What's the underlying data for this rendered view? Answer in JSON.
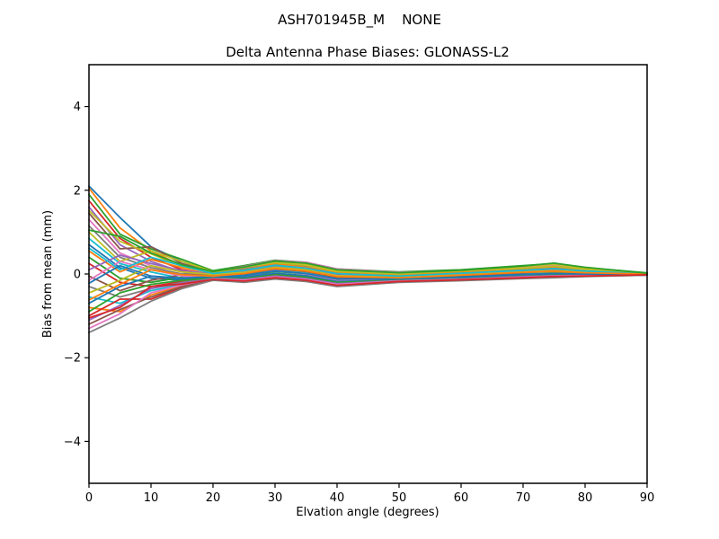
{
  "chart_data": {
    "type": "line",
    "suptitle": "ASH701945B_M    NONE",
    "title": "Delta Antenna Phase Biases: GLONASS-L2",
    "xlabel": "Elvation angle (degrees)",
    "ylabel": "Bias from mean (mm)",
    "xlim": [
      0,
      90
    ],
    "ylim": [
      -5,
      5
    ],
    "xticks": [
      0,
      10,
      20,
      30,
      40,
      50,
      60,
      70,
      80,
      90
    ],
    "yticks": [
      -4,
      -2,
      0,
      2,
      4
    ],
    "grid": false,
    "legend": "none",
    "x": [
      0,
      5,
      10,
      15,
      20,
      25,
      30,
      35,
      40,
      50,
      60,
      70,
      75,
      80,
      90
    ],
    "series": [
      {
        "color": "#1f77b4",
        "values": [
          2.1,
          1.35,
          0.65,
          0.3,
          0.05,
          0.1,
          0.22,
          0.18,
          0.05,
          0.02,
          0.08,
          0.15,
          0.2,
          0.12,
          0.01
        ]
      },
      {
        "color": "#ff7f0e",
        "values": [
          2.05,
          1.1,
          0.55,
          0.2,
          0.02,
          0.15,
          0.3,
          0.25,
          0.1,
          -0.05,
          0.02,
          0.1,
          0.15,
          0.08,
          0.0
        ]
      },
      {
        "color": "#2ca02c",
        "values": [
          1.9,
          0.95,
          0.6,
          0.35,
          0.08,
          0.2,
          0.33,
          0.28,
          0.12,
          0.05,
          0.1,
          0.2,
          0.25,
          0.15,
          0.03
        ]
      },
      {
        "color": "#d62728",
        "values": [
          1.75,
          0.85,
          0.4,
          0.1,
          -0.02,
          0.05,
          0.18,
          0.12,
          0.0,
          -0.08,
          -0.02,
          0.05,
          0.1,
          0.05,
          0.0
        ]
      },
      {
        "color": "#9467bd",
        "values": [
          1.6,
          0.7,
          0.3,
          0.05,
          0.0,
          0.12,
          0.25,
          0.2,
          0.08,
          0.0,
          0.05,
          0.12,
          0.18,
          0.1,
          0.01
        ]
      },
      {
        "color": "#8c564b",
        "values": [
          1.45,
          0.6,
          0.65,
          0.25,
          0.05,
          0.18,
          0.28,
          0.22,
          0.05,
          -0.02,
          0.06,
          0.16,
          0.22,
          0.12,
          0.01
        ]
      },
      {
        "color": "#e377c2",
        "values": [
          1.3,
          0.5,
          0.2,
          -0.05,
          0.05,
          0.18,
          0.32,
          0.28,
          0.12,
          0.04,
          0.08,
          0.16,
          0.22,
          0.13,
          0.01
        ]
      },
      {
        "color": "#7f7f7f",
        "values": [
          1.15,
          0.4,
          0.15,
          0.0,
          0.03,
          0.14,
          0.26,
          0.18,
          0.02,
          -0.04,
          0.03,
          0.1,
          0.14,
          0.07,
          0.0
        ]
      },
      {
        "color": "#bcbd22",
        "values": [
          1.0,
          0.3,
          0.55,
          0.3,
          0.06,
          0.16,
          0.3,
          0.24,
          0.08,
          0.02,
          0.08,
          0.18,
          0.24,
          0.14,
          0.02
        ]
      },
      {
        "color": "#17becf",
        "values": [
          0.85,
          0.25,
          0.05,
          -0.1,
          -0.08,
          -0.02,
          0.1,
          0.05,
          -0.1,
          -0.12,
          -0.06,
          0.0,
          0.04,
          0.02,
          -0.01
        ]
      },
      {
        "color": "#1f77b4",
        "values": [
          0.7,
          0.15,
          -0.1,
          -0.15,
          -0.04,
          0.08,
          0.2,
          0.15,
          0.0,
          -0.06,
          0.0,
          0.08,
          0.12,
          0.06,
          0.0
        ]
      },
      {
        "color": "#ff7f0e",
        "values": [
          0.55,
          0.05,
          0.35,
          0.15,
          0.02,
          0.1,
          0.24,
          0.16,
          0.03,
          -0.03,
          0.04,
          0.12,
          0.16,
          0.09,
          0.01
        ]
      },
      {
        "color": "#2ca02c",
        "values": [
          0.4,
          -0.1,
          -0.2,
          -0.08,
          -0.06,
          -0.05,
          0.06,
          0.0,
          -0.14,
          -0.13,
          -0.08,
          -0.02,
          0.02,
          0.0,
          -0.01
        ]
      },
      {
        "color": "#d62728",
        "values": [
          0.25,
          -0.2,
          -0.3,
          -0.18,
          -0.1,
          -0.1,
          0.0,
          -0.06,
          -0.18,
          -0.14,
          -0.1,
          -0.04,
          -0.02,
          -0.02,
          -0.02
        ]
      },
      {
        "color": "#9467bd",
        "values": [
          0.1,
          0.45,
          0.25,
          0.08,
          0.0,
          0.06,
          0.18,
          0.12,
          -0.02,
          -0.07,
          -0.01,
          0.06,
          0.1,
          0.05,
          0.0
        ]
      },
      {
        "color": "#8c564b",
        "values": [
          -0.05,
          -0.4,
          -0.15,
          -0.02,
          -0.03,
          0.0,
          0.12,
          0.06,
          -0.08,
          -0.1,
          -0.04,
          0.03,
          0.07,
          0.03,
          0.0
        ]
      },
      {
        "color": "#e377c2",
        "values": [
          -0.15,
          0.3,
          0.1,
          -0.05,
          -0.07,
          -0.06,
          0.08,
          0.0,
          -0.16,
          -0.13,
          -0.09,
          -0.03,
          0.0,
          -0.01,
          -0.01
        ]
      },
      {
        "color": "#7f7f7f",
        "values": [
          -0.3,
          -0.55,
          -0.35,
          -0.2,
          -0.09,
          -0.12,
          -0.04,
          -0.1,
          -0.22,
          -0.15,
          -0.11,
          -0.06,
          -0.04,
          -0.03,
          -0.02
        ]
      },
      {
        "color": "#bcbd22",
        "values": [
          -0.45,
          -0.15,
          0.2,
          0.05,
          -0.01,
          0.04,
          0.16,
          0.1,
          -0.04,
          -0.08,
          -0.02,
          0.05,
          0.08,
          0.04,
          0.0
        ]
      },
      {
        "color": "#17becf",
        "values": [
          -0.55,
          -0.7,
          -0.4,
          -0.25,
          -0.11,
          -0.14,
          -0.06,
          -0.12,
          -0.24,
          -0.16,
          -0.12,
          -0.07,
          -0.05,
          -0.04,
          -0.02
        ]
      },
      {
        "color": "#1f77b4",
        "values": [
          -0.7,
          -0.3,
          -0.05,
          -0.12,
          -0.08,
          -0.08,
          0.02,
          -0.04,
          -0.18,
          -0.14,
          -0.1,
          -0.04,
          -0.01,
          -0.02,
          -0.01
        ]
      },
      {
        "color": "#ff7f0e",
        "values": [
          -0.8,
          -0.9,
          -0.5,
          -0.28,
          -0.12,
          -0.16,
          -0.08,
          -0.14,
          -0.26,
          -0.17,
          -0.13,
          -0.08,
          -0.06,
          -0.04,
          -0.02
        ]
      },
      {
        "color": "#2ca02c",
        "values": [
          -0.9,
          -0.45,
          -0.25,
          -0.15,
          -0.1,
          -0.11,
          -0.02,
          -0.08,
          -0.2,
          -0.15,
          -0.11,
          -0.05,
          -0.03,
          -0.03,
          -0.02
        ]
      },
      {
        "color": "#d62728",
        "values": [
          -1.0,
          -0.6,
          -0.6,
          -0.32,
          -0.13,
          -0.18,
          -0.1,
          -0.16,
          -0.28,
          -0.18,
          -0.14,
          -0.09,
          -0.07,
          -0.05,
          -0.02
        ]
      },
      {
        "color": "#9467bd",
        "values": [
          -1.1,
          -0.75,
          -0.35,
          -0.22,
          -0.11,
          -0.13,
          -0.05,
          -0.11,
          -0.23,
          -0.16,
          -0.12,
          -0.06,
          -0.04,
          -0.03,
          -0.02
        ]
      },
      {
        "color": "#8c564b",
        "values": [
          -1.2,
          -0.85,
          -0.55,
          -0.3,
          -0.14,
          -0.19,
          -0.11,
          -0.17,
          -0.29,
          -0.19,
          -0.15,
          -0.1,
          -0.08,
          -0.05,
          -0.03
        ]
      },
      {
        "color": "#e377c2",
        "values": [
          -1.3,
          -0.95,
          -0.45,
          -0.26,
          -0.12,
          -0.15,
          -0.07,
          -0.13,
          -0.25,
          -0.17,
          -0.13,
          -0.08,
          -0.05,
          -0.04,
          -0.02
        ]
      },
      {
        "color": "#7f7f7f",
        "values": [
          -1.4,
          -1.05,
          -0.65,
          -0.35,
          -0.15,
          -0.2,
          -0.12,
          -0.18,
          -0.3,
          -0.2,
          -0.16,
          -0.11,
          -0.09,
          -0.06,
          -0.03
        ]
      },
      {
        "color": "#bcbd22",
        "values": [
          1.52,
          0.78,
          0.48,
          0.18,
          0.04,
          0.16,
          0.27,
          0.21,
          0.06,
          0.0,
          0.07,
          0.14,
          0.19,
          0.11,
          0.01
        ]
      },
      {
        "color": "#17becf",
        "values": [
          0.62,
          0.1,
          0.4,
          0.2,
          0.01,
          0.09,
          0.21,
          0.14,
          0.01,
          -0.05,
          0.02,
          0.09,
          0.13,
          0.07,
          0.0
        ]
      },
      {
        "color": "#1f77b4",
        "values": [
          -0.22,
          0.2,
          -0.05,
          -0.1,
          -0.06,
          -0.04,
          0.07,
          0.01,
          -0.12,
          -0.11,
          -0.07,
          -0.01,
          0.01,
          0.0,
          -0.01
        ]
      },
      {
        "color": "#ff7f0e",
        "values": [
          -0.62,
          -0.25,
          0.1,
          -0.02,
          -0.05,
          0.01,
          0.13,
          0.07,
          -0.06,
          -0.09,
          -0.03,
          0.04,
          0.06,
          0.03,
          0.0
        ]
      },
      {
        "color": "#2ca02c",
        "values": [
          1.05,
          0.9,
          0.5,
          0.22,
          0.06,
          0.17,
          0.31,
          0.26,
          0.1,
          0.03,
          0.09,
          0.19,
          0.26,
          0.16,
          0.02
        ]
      },
      {
        "color": "#d62728",
        "values": [
          -1.05,
          -0.8,
          -0.3,
          -0.24,
          -0.13,
          -0.17,
          -0.09,
          -0.15,
          -0.27,
          -0.18,
          -0.14,
          -0.09,
          -0.06,
          -0.05,
          -0.02
        ]
      }
    ]
  }
}
